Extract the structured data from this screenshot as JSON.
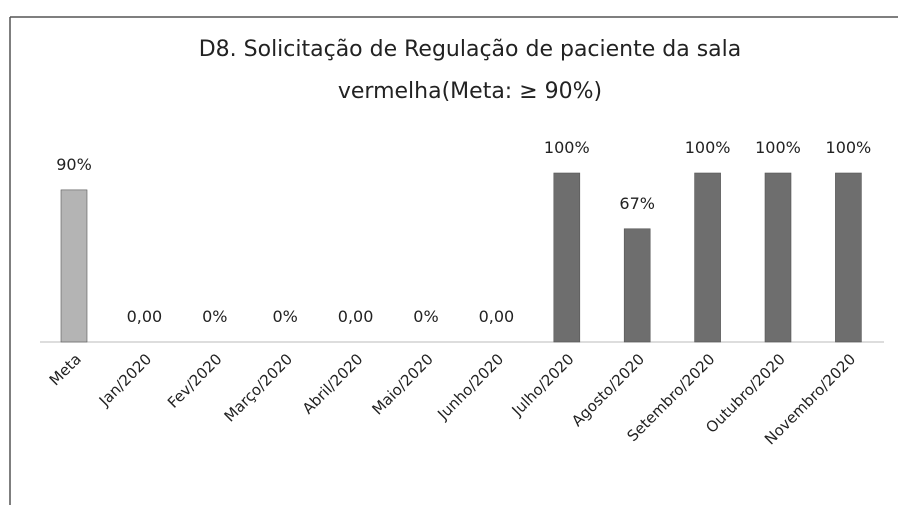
{
  "chart_data": {
    "type": "bar",
    "title": [
      "D8. Solicitação de Regulação de paciente da sala",
      "vermelha(Meta: ≥ 90%)"
    ],
    "categories": [
      "Meta",
      "Jan/2020",
      "Fev/2020",
      "Março/2020",
      "Abril/2020",
      "Maio/2020",
      "Junho/2020",
      "Julho/2020",
      "Agosto/2020",
      "Setembro/2020",
      "Outubro/2020",
      "Novembro/2020"
    ],
    "values": [
      90,
      0,
      0,
      0,
      0,
      0,
      0,
      100,
      67,
      100,
      100,
      100
    ],
    "value_labels": [
      "90%",
      "0,00",
      "0%",
      "0%",
      "0,00",
      "0%",
      "0,00",
      "100%",
      "67%",
      "100%",
      "100%",
      "100%"
    ],
    "colors": [
      "#b4b4b4",
      "#6e6e6e",
      "#6e6e6e",
      "#6e6e6e",
      "#6e6e6e",
      "#6e6e6e",
      "#6e6e6e",
      "#6e6e6e",
      "#6e6e6e",
      "#6e6e6e",
      "#6e6e6e",
      "#6e6e6e"
    ]
  }
}
